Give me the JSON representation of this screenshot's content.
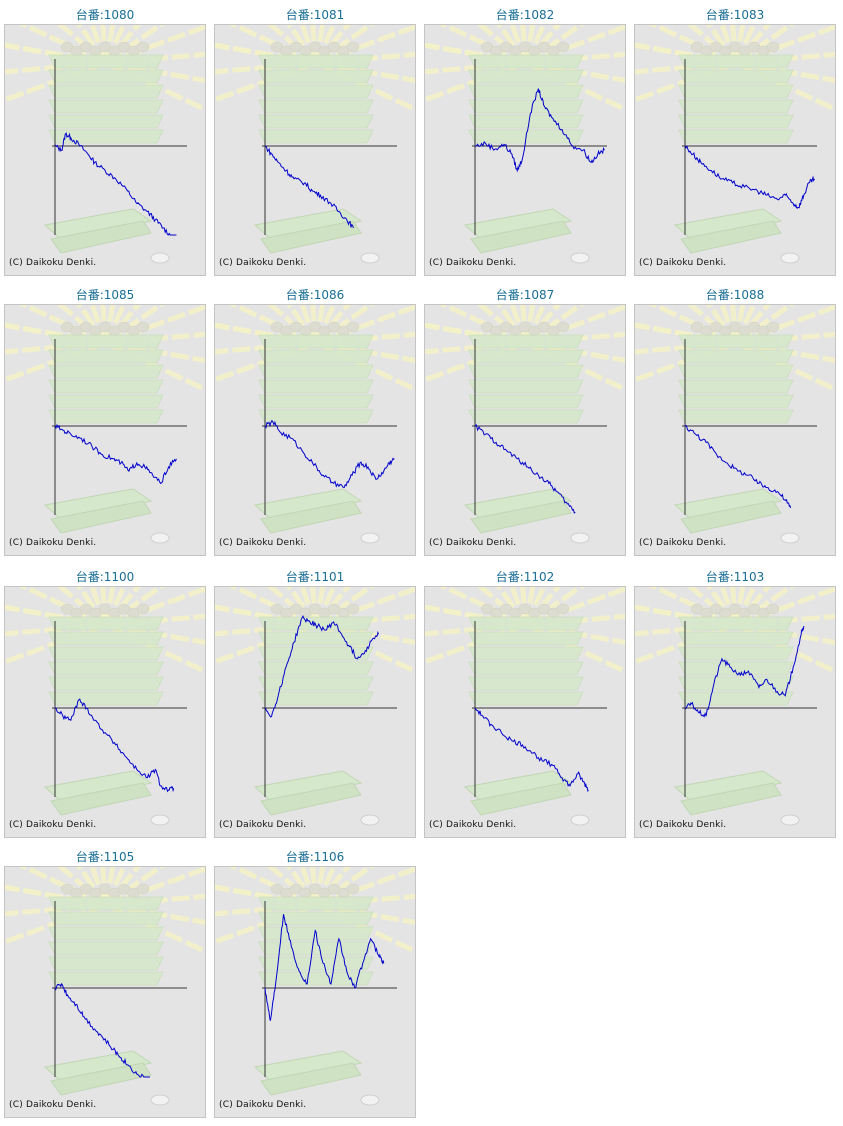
{
  "copyright": "(C) Daikoku Denki.",
  "colors": {
    "line": "#0000cc",
    "axis": "#333333",
    "title": "#1a6e96",
    "background": "#e4e4e4"
  },
  "chart_data": [
    {
      "type": "line",
      "title": "台番:1080",
      "x": [
        0,
        0.05,
        0.08,
        0.12,
        0.18,
        0.25,
        0.3,
        0.38,
        0.46,
        0.55,
        0.62,
        0.7,
        0.76,
        0.82,
        0.88,
        0.92
      ],
      "y": [
        0,
        -0.05,
        0.15,
        0.1,
        0.02,
        -0.1,
        -0.2,
        -0.3,
        -0.4,
        -0.55,
        -0.7,
        -0.8,
        -0.9,
        -1.0,
        -1.1,
        -1.15
      ]
    },
    {
      "type": "line",
      "title": "台番:1081",
      "x": [
        0,
        0.05,
        0.1,
        0.16,
        0.22,
        0.3,
        0.36,
        0.42,
        0.5,
        0.56,
        0.62,
        0.67
      ],
      "y": [
        0,
        -0.1,
        -0.2,
        -0.3,
        -0.4,
        -0.45,
        -0.55,
        -0.6,
        -0.7,
        -0.8,
        -0.9,
        -1.0
      ]
    },
    {
      "type": "line",
      "title": "台番:1082",
      "x": [
        0,
        0.08,
        0.15,
        0.22,
        0.28,
        0.32,
        0.36,
        0.42,
        0.48,
        0.52,
        0.58,
        0.66,
        0.74,
        0.82,
        0.88,
        0.93,
        0.98
      ],
      "y": [
        0,
        0.03,
        -0.04,
        0.02,
        -0.1,
        -0.3,
        -0.15,
        0.4,
        0.7,
        0.5,
        0.35,
        0.2,
        0.0,
        -0.05,
        -0.2,
        -0.1,
        -0.05
      ]
    },
    {
      "type": "line",
      "title": "台番:1083",
      "x": [
        0,
        0.06,
        0.12,
        0.2,
        0.28,
        0.36,
        0.45,
        0.55,
        0.62,
        0.7,
        0.76,
        0.82,
        0.86,
        0.9,
        0.94,
        0.98
      ],
      "y": [
        0,
        -0.1,
        -0.2,
        -0.3,
        -0.4,
        -0.45,
        -0.5,
        -0.55,
        -0.6,
        -0.65,
        -0.6,
        -0.7,
        -0.75,
        -0.6,
        -0.45,
        -0.4
      ]
    },
    {
      "type": "line",
      "title": "台番:1085",
      "x": [
        0,
        0.06,
        0.12,
        0.2,
        0.28,
        0.36,
        0.44,
        0.5,
        0.56,
        0.62,
        0.68,
        0.74,
        0.8,
        0.86,
        0.92
      ],
      "y": [
        0,
        -0.05,
        -0.1,
        -0.15,
        -0.25,
        -0.35,
        -0.4,
        -0.45,
        -0.55,
        -0.45,
        -0.5,
        -0.6,
        -0.7,
        -0.5,
        -0.4
      ]
    },
    {
      "type": "line",
      "title": "台番:1086",
      "x": [
        0,
        0.06,
        0.12,
        0.2,
        0.28,
        0.36,
        0.44,
        0.52,
        0.6,
        0.66,
        0.72,
        0.78,
        0.84,
        0.9,
        0.94,
        0.98
      ],
      "y": [
        0,
        0.05,
        -0.08,
        -0.15,
        -0.3,
        -0.45,
        -0.6,
        -0.7,
        -0.75,
        -0.6,
        -0.45,
        -0.5,
        -0.65,
        -0.55,
        -0.45,
        -0.4
      ]
    },
    {
      "type": "line",
      "title": "台番:1087",
      "x": [
        0,
        0.08,
        0.16,
        0.24,
        0.32,
        0.4,
        0.48,
        0.56,
        0.62,
        0.7,
        0.76
      ],
      "y": [
        0,
        -0.1,
        -0.2,
        -0.3,
        -0.4,
        -0.5,
        -0.6,
        -0.7,
        -0.8,
        -0.95,
        -1.05
      ]
    },
    {
      "type": "line",
      "title": "台番:1088",
      "x": [
        0,
        0.08,
        0.16,
        0.24,
        0.32,
        0.4,
        0.48,
        0.56,
        0.62,
        0.7,
        0.76,
        0.8
      ],
      "y": [
        0,
        -0.1,
        -0.2,
        -0.35,
        -0.45,
        -0.55,
        -0.6,
        -0.7,
        -0.75,
        -0.8,
        -0.9,
        -1.0
      ]
    },
    {
      "type": "line",
      "title": "台番:1100",
      "x": [
        0,
        0.06,
        0.12,
        0.18,
        0.24,
        0.3,
        0.38,
        0.46,
        0.54,
        0.62,
        0.7,
        0.76,
        0.8,
        0.86,
        0.9
      ],
      "y": [
        0,
        -0.1,
        -0.15,
        0.1,
        0.0,
        -0.15,
        -0.3,
        -0.45,
        -0.6,
        -0.75,
        -0.85,
        -0.75,
        -0.95,
        -1.0,
        -0.98
      ]
    },
    {
      "type": "line",
      "title": "台番:1101",
      "x": [
        0,
        0.05,
        0.1,
        0.16,
        0.22,
        0.28,
        0.34,
        0.4,
        0.46,
        0.52,
        0.58,
        0.64,
        0.7,
        0.76,
        0.82,
        0.86
      ],
      "y": [
        0,
        -0.1,
        0.15,
        0.5,
        0.8,
        1.1,
        1.05,
        1.0,
        0.95,
        1.05,
        0.9,
        0.75,
        0.6,
        0.7,
        0.85,
        0.9
      ]
    },
    {
      "type": "line",
      "title": "台番:1102",
      "x": [
        0,
        0.06,
        0.12,
        0.2,
        0.28,
        0.36,
        0.44,
        0.52,
        0.6,
        0.66,
        0.72,
        0.78,
        0.82,
        0.86
      ],
      "y": [
        0,
        -0.1,
        -0.2,
        -0.3,
        -0.4,
        -0.45,
        -0.55,
        -0.65,
        -0.7,
        -0.85,
        -0.95,
        -0.8,
        -0.9,
        -1.0
      ]
    },
    {
      "type": "line",
      "title": "台番:1103",
      "x": [
        0,
        0.05,
        0.1,
        0.16,
        0.22,
        0.28,
        0.34,
        0.42,
        0.48,
        0.56,
        0.62,
        0.7,
        0.76,
        0.82,
        0.88,
        0.9
      ],
      "y": [
        0,
        0.05,
        -0.05,
        -0.1,
        0.3,
        0.6,
        0.5,
        0.4,
        0.45,
        0.25,
        0.35,
        0.2,
        0.15,
        0.5,
        0.9,
        1.0
      ]
    },
    {
      "type": "line",
      "title": "台番:1105",
      "x": [
        0,
        0.05,
        0.1,
        0.16,
        0.22,
        0.3,
        0.36,
        0.44,
        0.5,
        0.56,
        0.62,
        0.68,
        0.72
      ],
      "y": [
        0,
        0.05,
        -0.1,
        -0.2,
        -0.35,
        -0.5,
        -0.6,
        -0.75,
        -0.85,
        -0.95,
        -1.05,
        -1.1,
        -1.12
      ]
    },
    {
      "type": "line",
      "title": "台番:1106",
      "x": [
        0,
        0.04,
        0.08,
        0.14,
        0.2,
        0.26,
        0.32,
        0.38,
        0.44,
        0.5,
        0.56,
        0.62,
        0.68,
        0.74,
        0.8,
        0.86,
        0.9
      ],
      "y": [
        0,
        -0.4,
        0.05,
        0.9,
        0.5,
        0.2,
        0.05,
        0.7,
        0.3,
        0.05,
        0.6,
        0.2,
        0.0,
        0.3,
        0.6,
        0.4,
        0.3
      ]
    }
  ]
}
